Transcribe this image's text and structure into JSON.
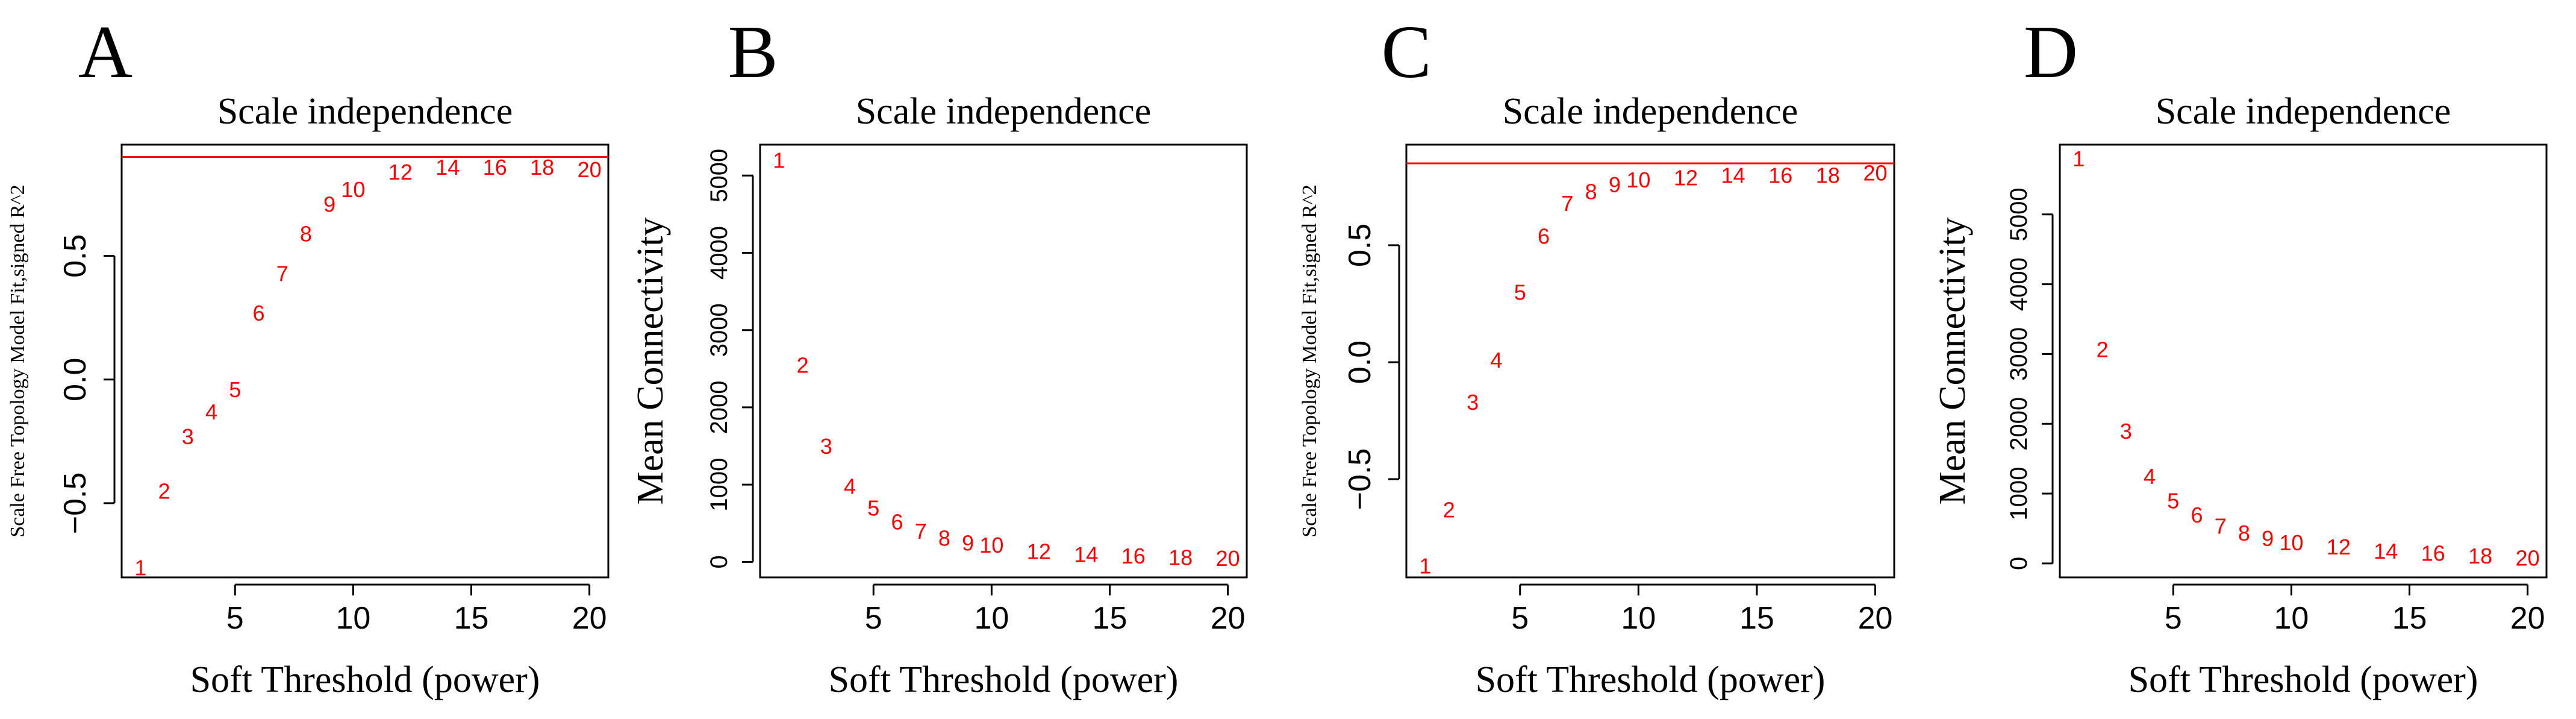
{
  "colors": {
    "points": "#ff0000",
    "hline": "#ff0000",
    "axis": "#000000"
  },
  "chart_data": [
    {
      "panel": "A",
      "type": "scatter",
      "title": "Scale independence",
      "xlabel": "Soft Threshold (power)",
      "ylabel": "Scale Free Topology Model Fit,signed R^2",
      "xlim": [
        0.2,
        20.8
      ],
      "ylim": [
        -0.8,
        0.95
      ],
      "xticks": [
        5,
        10,
        15,
        20
      ],
      "yticks": [
        -0.5,
        0.0,
        0.5
      ],
      "ytick_labels": [
        "−0.5",
        "0.0",
        "0.5"
      ],
      "hline": 0.9,
      "x": [
        1,
        2,
        3,
        4,
        5,
        6,
        7,
        8,
        9,
        10,
        12,
        14,
        16,
        18,
        20
      ],
      "labels": [
        "1",
        "2",
        "3",
        "4",
        "5",
        "6",
        "7",
        "8",
        "9",
        "10",
        "12",
        "14",
        "16",
        "18",
        "20"
      ],
      "values": [
        -0.76,
        -0.45,
        -0.23,
        -0.13,
        -0.04,
        0.27,
        0.43,
        0.59,
        0.71,
        0.77,
        0.84,
        0.86,
        0.86,
        0.86,
        0.85
      ]
    },
    {
      "panel": "B",
      "type": "scatter",
      "title": "Scale independence",
      "xlabel": "Soft Threshold (power)",
      "ylabel": "Mean Connectivity",
      "xlim": [
        0.2,
        20.8
      ],
      "ylim": [
        -200,
        5400
      ],
      "xticks": [
        5,
        10,
        15,
        20
      ],
      "yticks": [
        0,
        1000,
        2000,
        3000,
        4000,
        5000
      ],
      "ytick_labels": [
        "0",
        "1000",
        "2000",
        "3000",
        "4000",
        "5000"
      ],
      "x": [
        1,
        2,
        3,
        4,
        5,
        6,
        7,
        8,
        9,
        10,
        12,
        14,
        16,
        18,
        20
      ],
      "labels": [
        "1",
        "2",
        "3",
        "4",
        "5",
        "6",
        "7",
        "8",
        "9",
        "10",
        "12",
        "14",
        "16",
        "18",
        "20"
      ],
      "values": [
        5200,
        2550,
        1500,
        980,
        700,
        520,
        400,
        310,
        250,
        220,
        140,
        100,
        80,
        60,
        50
      ]
    },
    {
      "panel": "C",
      "type": "scatter",
      "title": "Scale independence",
      "xlabel": "Soft Threshold (power)",
      "ylabel": "Scale Free Topology Model Fit,signed R^2",
      "xlim": [
        0.2,
        20.8
      ],
      "ylim": [
        -0.92,
        0.93
      ],
      "xticks": [
        5,
        10,
        15,
        20
      ],
      "yticks": [
        -0.5,
        0.0,
        0.5
      ],
      "ytick_labels": [
        "−0.5",
        "0.0",
        "0.5"
      ],
      "hline": 0.85,
      "x": [
        1,
        2,
        3,
        4,
        5,
        6,
        7,
        8,
        9,
        10,
        12,
        14,
        16,
        18,
        20
      ],
      "labels": [
        "1",
        "2",
        "3",
        "4",
        "5",
        "6",
        "7",
        "8",
        "9",
        "10",
        "12",
        "14",
        "16",
        "18",
        "20"
      ],
      "values": [
        -0.87,
        -0.63,
        -0.17,
        0.01,
        0.3,
        0.54,
        0.68,
        0.73,
        0.76,
        0.78,
        0.79,
        0.8,
        0.8,
        0.8,
        0.81
      ]
    },
    {
      "panel": "D",
      "type": "scatter",
      "title": "Scale independence",
      "xlabel": "Soft Threshold (power)",
      "ylabel": "Mean Connectivity",
      "xlim": [
        0.2,
        20.8
      ],
      "ylim": [
        -200,
        6000
      ],
      "xticks": [
        5,
        10,
        15,
        20
      ],
      "yticks": [
        0,
        1000,
        2000,
        3000,
        4000,
        5000
      ],
      "ytick_labels": [
        "0",
        "1000",
        "2000",
        "3000",
        "4000",
        "5000"
      ],
      "x": [
        1,
        2,
        3,
        4,
        5,
        6,
        7,
        8,
        9,
        10,
        12,
        14,
        16,
        18,
        20
      ],
      "labels": [
        "1",
        "2",
        "3",
        "4",
        "5",
        "6",
        "7",
        "8",
        "9",
        "10",
        "12",
        "14",
        "16",
        "18",
        "20"
      ],
      "values": [
        5800,
        3070,
        1900,
        1250,
        900,
        700,
        540,
        440,
        360,
        300,
        240,
        180,
        150,
        110,
        80
      ]
    }
  ]
}
